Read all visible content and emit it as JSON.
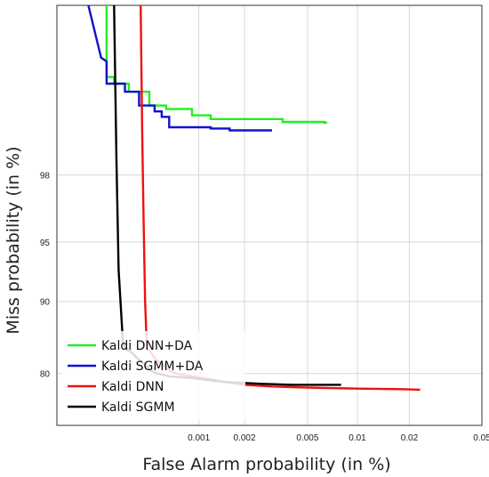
{
  "chart_data": {
    "type": "line",
    "title": "",
    "xlabel": "False Alarm probability (in %)",
    "ylabel": "Miss probability (in %)",
    "x_scale": "normal-deviate",
    "y_scale": "normal-deviate",
    "xlim": [
      0.0001,
      0.05
    ],
    "ylim": [
      70,
      99.9
    ],
    "x_ticks": [
      {
        "value": 0.001,
        "label": "0.001"
      },
      {
        "value": 0.002,
        "label": "0.002"
      },
      {
        "value": 0.005,
        "label": "0.005"
      },
      {
        "value": 0.01,
        "label": "0.01"
      },
      {
        "value": 0.02,
        "label": "0.02"
      },
      {
        "value": 0.05,
        "label": "0.05"
      }
    ],
    "y_ticks": [
      {
        "value": 80,
        "label": "80"
      },
      {
        "value": 90,
        "label": "90"
      },
      {
        "value": 95,
        "label": "95"
      },
      {
        "value": 98,
        "label": "98"
      }
    ],
    "grid": true,
    "legend_position": "bottom-left",
    "series": [
      {
        "name": "Kaldi DNN+DA",
        "color": "#22ee22",
        "points": [
          [
            0.00023,
            99.9
          ],
          [
            0.00023,
            99.6
          ],
          [
            0.00026,
            99.6
          ],
          [
            0.00026,
            99.55
          ],
          [
            0.00033,
            99.55
          ],
          [
            0.00033,
            99.48
          ],
          [
            0.00046,
            99.48
          ],
          [
            0.00046,
            99.34
          ],
          [
            0.0006,
            99.34
          ],
          [
            0.0006,
            99.3
          ],
          [
            0.0009,
            99.3
          ],
          [
            0.0009,
            99.22
          ],
          [
            0.0012,
            99.22
          ],
          [
            0.0012,
            99.17
          ],
          [
            0.0035,
            99.17
          ],
          [
            0.0035,
            99.13
          ],
          [
            0.0063,
            99.13
          ],
          [
            0.0063,
            99.12
          ],
          [
            0.0066,
            99.12
          ]
        ]
      },
      {
        "name": "Kaldi SGMM+DA",
        "color": "#1111cc",
        "points": [
          [
            0.00017,
            99.9
          ],
          [
            0.00021,
            99.72
          ],
          [
            0.00023,
            99.7
          ],
          [
            0.00023,
            99.55
          ],
          [
            0.00031,
            99.55
          ],
          [
            0.00031,
            99.48
          ],
          [
            0.00039,
            99.48
          ],
          [
            0.00039,
            99.34
          ],
          [
            0.0005,
            99.34
          ],
          [
            0.0005,
            99.27
          ],
          [
            0.00056,
            99.27
          ],
          [
            0.00056,
            99.2
          ],
          [
            0.00063,
            99.2
          ],
          [
            0.00063,
            99.05
          ],
          [
            0.0012,
            99.05
          ],
          [
            0.0012,
            99.03
          ],
          [
            0.0016,
            99.03
          ],
          [
            0.0016,
            99.0
          ],
          [
            0.003,
            99.0
          ]
        ]
      },
      {
        "name": "Kaldi DNN",
        "color": "#ee1111",
        "points": [
          [
            0.0004,
            99.9
          ],
          [
            0.00041,
            99.0
          ],
          [
            0.00042,
            96.0
          ],
          [
            0.00043,
            90.0
          ],
          [
            0.00044,
            85.0
          ],
          [
            0.00044,
            84.0
          ],
          [
            0.00047,
            83.5
          ],
          [
            0.0005,
            82.5
          ],
          [
            0.00053,
            82.0
          ],
          [
            0.00057,
            81.5
          ],
          [
            0.00063,
            80.5
          ],
          [
            0.0007,
            80.0
          ],
          [
            0.0009,
            79.5
          ],
          [
            0.0012,
            79.0
          ],
          [
            0.0015,
            78.5
          ],
          [
            0.002,
            78.0
          ],
          [
            0.003,
            77.7
          ],
          [
            0.005,
            77.5
          ],
          [
            0.01,
            77.3
          ],
          [
            0.018,
            77.2
          ],
          [
            0.023,
            77.1
          ]
        ]
      },
      {
        "name": "Kaldi SGMM",
        "color": "#000000",
        "points": [
          [
            0.00026,
            99.9
          ],
          [
            0.00027,
            98.5
          ],
          [
            0.00028,
            93.0
          ],
          [
            0.0003,
            85.0
          ],
          [
            0.00031,
            84.0
          ],
          [
            0.00034,
            83.5
          ],
          [
            0.00036,
            83.0
          ],
          [
            0.0004,
            82.0
          ],
          [
            0.00043,
            81.5
          ],
          [
            0.00047,
            80.5
          ],
          [
            0.00052,
            80.0
          ],
          [
            0.00063,
            79.5
          ],
          [
            0.0009,
            79.2
          ],
          [
            0.0012,
            78.8
          ],
          [
            0.0015,
            78.5
          ],
          [
            0.0025,
            78.2
          ],
          [
            0.004,
            78.0
          ],
          [
            0.008,
            78.0
          ]
        ]
      }
    ]
  }
}
